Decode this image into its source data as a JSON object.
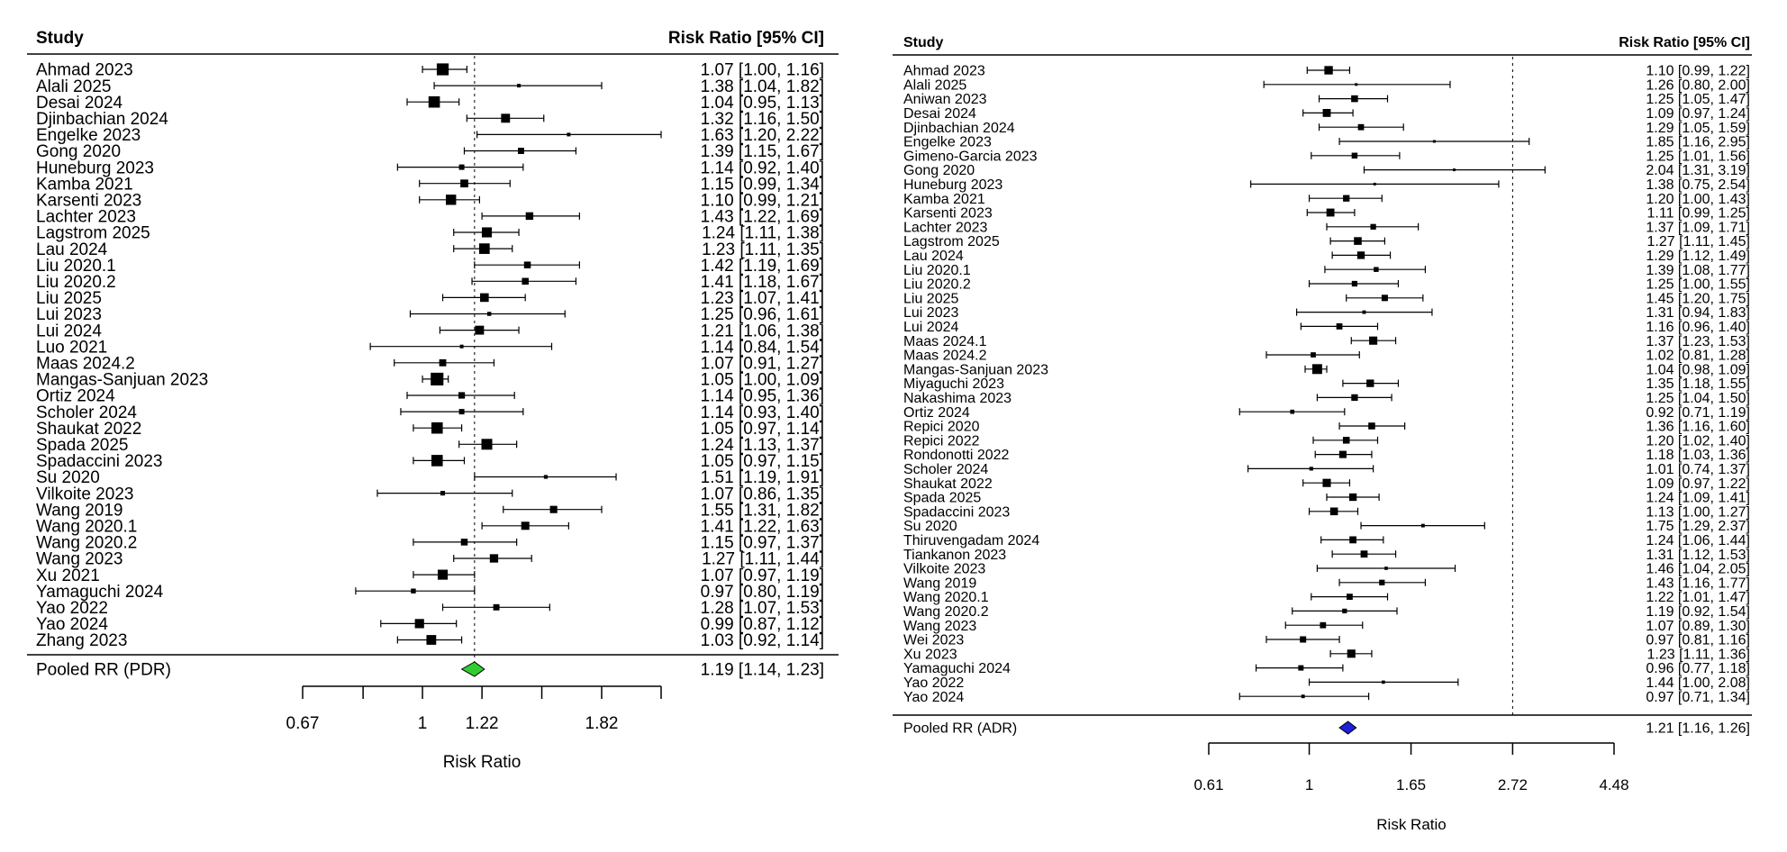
{
  "chart_data": [
    {
      "type": "forest",
      "header_left": "Study",
      "header_right": "Risk Ratio [95% CI]",
      "xlabel": "Risk Ratio",
      "ticks": [
        "0.67",
        "1",
        "1.22",
        "1.82"
      ],
      "tick_values": [
        0.67,
        0.82,
        1,
        1.22,
        1.49,
        1.82,
        2.22
      ],
      "scale": "log",
      "reference_line": 1.19,
      "marker_color": "#000000",
      "studies": [
        {
          "name": "Ahmad 2023",
          "rr": 1.07,
          "lo": 1.0,
          "hi": 1.16,
          "ci_text": "1.07 [1.00, 1.16]",
          "weight": 4.4
        },
        {
          "name": "Alali 2025",
          "rr": 1.38,
          "lo": 1.04,
          "hi": 1.82,
          "ci_text": "1.38 [1.04, 1.82]",
          "weight": 1.2
        },
        {
          "name": "Desai 2024",
          "rr": 1.04,
          "lo": 0.95,
          "hi": 1.13,
          "ci_text": "1.04 [0.95, 1.13]",
          "weight": 4.2
        },
        {
          "name": "Djinbachian 2024",
          "rr": 1.32,
          "lo": 1.16,
          "hi": 1.5,
          "ci_text": "1.32 [1.16, 1.50]",
          "weight": 3.3
        },
        {
          "name": "Engelke 2023",
          "rr": 1.63,
          "lo": 1.2,
          "hi": 2.22,
          "ci_text": "1.63 [1.20, 2.22]",
          "weight": 1.0
        },
        {
          "name": "Gong 2020",
          "rr": 1.39,
          "lo": 1.15,
          "hi": 1.67,
          "ci_text": "1.39 [1.15, 1.67]",
          "weight": 2.3
        },
        {
          "name": "Huneburg 2023",
          "rr": 1.14,
          "lo": 0.92,
          "hi": 1.4,
          "ci_text": "1.14 [0.92, 1.40]",
          "weight": 2.0
        },
        {
          "name": "Kamba 2021",
          "rr": 1.15,
          "lo": 0.99,
          "hi": 1.34,
          "ci_text": "1.15 [0.99, 1.34]",
          "weight": 2.9
        },
        {
          "name": "Karsenti 2023",
          "rr": 1.1,
          "lo": 0.99,
          "hi": 1.21,
          "ci_text": "1.10 [0.99, 1.21]",
          "weight": 3.8
        },
        {
          "name": "Lachter 2023",
          "rr": 1.43,
          "lo": 1.22,
          "hi": 1.69,
          "ci_text": "1.43 [1.22, 1.69]",
          "weight": 2.8
        },
        {
          "name": "Lagstrom 2025",
          "rr": 1.24,
          "lo": 1.11,
          "hi": 1.38,
          "ci_text": "1.24 [1.11, 1.38]",
          "weight": 3.7
        },
        {
          "name": "Lau 2024",
          "rr": 1.23,
          "lo": 1.11,
          "hi": 1.35,
          "ci_text": "1.23 [1.11, 1.35]",
          "weight": 3.9
        },
        {
          "name": "Liu 2020.1",
          "rr": 1.42,
          "lo": 1.19,
          "hi": 1.69,
          "ci_text": "1.42 [1.19, 1.69]",
          "weight": 2.5
        },
        {
          "name": "Liu 2020.2",
          "rr": 1.41,
          "lo": 1.18,
          "hi": 1.67,
          "ci_text": "1.41 [1.18, 1.67]",
          "weight": 2.5
        },
        {
          "name": "Liu 2025",
          "rr": 1.23,
          "lo": 1.07,
          "hi": 1.41,
          "ci_text": "1.23 [1.07, 1.41]",
          "weight": 3.2
        },
        {
          "name": "Lui 2023",
          "rr": 1.25,
          "lo": 0.96,
          "hi": 1.61,
          "ci_text": "1.25 [0.96, 1.61]",
          "weight": 1.5
        },
        {
          "name": "Lui 2024",
          "rr": 1.21,
          "lo": 1.06,
          "hi": 1.38,
          "ci_text": "1.21 [1.06, 1.38]",
          "weight": 3.3
        },
        {
          "name": "Luo 2021",
          "rr": 1.14,
          "lo": 0.84,
          "hi": 1.54,
          "ci_text": "1.14 [0.84, 1.54]",
          "weight": 1.1
        },
        {
          "name": "Maas 2024.2",
          "rr": 1.07,
          "lo": 0.91,
          "hi": 1.27,
          "ci_text": "1.07 [0.91, 1.27]",
          "weight": 2.6
        },
        {
          "name": "Mangas-Sanjuan 2023",
          "rr": 1.05,
          "lo": 1.0,
          "hi": 1.09,
          "ci_text": "1.05 [1.00, 1.09]",
          "weight": 4.7
        },
        {
          "name": "Ortiz 2024",
          "rr": 1.14,
          "lo": 0.95,
          "hi": 1.36,
          "ci_text": "1.14 [0.95, 1.36]",
          "weight": 2.4
        },
        {
          "name": "Scholer 2024",
          "rr": 1.14,
          "lo": 0.93,
          "hi": 1.4,
          "ci_text": "1.14 [0.93, 1.40]",
          "weight": 2.0
        },
        {
          "name": "Shaukat 2022",
          "rr": 1.05,
          "lo": 0.97,
          "hi": 1.14,
          "ci_text": "1.05 [0.97, 1.14]",
          "weight": 4.2
        },
        {
          "name": "Spada 2025",
          "rr": 1.24,
          "lo": 1.13,
          "hi": 1.37,
          "ci_text": "1.24 [1.13, 1.37]",
          "weight": 4.0
        },
        {
          "name": "Spadaccini 2023",
          "rr": 1.05,
          "lo": 0.97,
          "hi": 1.15,
          "ci_text": "1.05 [0.97, 1.15]",
          "weight": 4.2
        },
        {
          "name": "Su 2020",
          "rr": 1.51,
          "lo": 1.19,
          "hi": 1.91,
          "ci_text": "1.51 [1.19, 1.91]",
          "weight": 1.4
        },
        {
          "name": "Vilkoite 2023",
          "rr": 1.07,
          "lo": 0.86,
          "hi": 1.35,
          "ci_text": "1.07 [0.86, 1.35]",
          "weight": 1.7
        },
        {
          "name": "Wang 2019",
          "rr": 1.55,
          "lo": 1.31,
          "hi": 1.82,
          "ci_text": "1.55 [1.31, 1.82]",
          "weight": 2.7
        },
        {
          "name": "Wang 2020.1",
          "rr": 1.41,
          "lo": 1.22,
          "hi": 1.63,
          "ci_text": "1.41 [1.22, 1.63]",
          "weight": 3.0
        },
        {
          "name": "Wang 2020.2",
          "rr": 1.15,
          "lo": 0.97,
          "hi": 1.37,
          "ci_text": "1.15 [0.97, 1.37]",
          "weight": 2.5
        },
        {
          "name": "Wang 2023",
          "rr": 1.27,
          "lo": 1.11,
          "hi": 1.44,
          "ci_text": "1.27 [1.11, 1.44]",
          "weight": 3.1
        },
        {
          "name": "Xu 2021",
          "rr": 1.07,
          "lo": 0.97,
          "hi": 1.19,
          "ci_text": "1.07 [0.97, 1.19]",
          "weight": 3.7
        },
        {
          "name": "Yamaguchi 2024",
          "rr": 0.97,
          "lo": 0.8,
          "hi": 1.19,
          "ci_text": "0.97 [0.80, 1.19]",
          "weight": 1.8
        },
        {
          "name": "Yao 2022",
          "rr": 1.28,
          "lo": 1.07,
          "hi": 1.53,
          "ci_text": "1.28 [1.07, 1.53]",
          "weight": 2.3
        },
        {
          "name": "Yao 2024",
          "rr": 0.99,
          "lo": 0.87,
          "hi": 1.12,
          "ci_text": "0.99 [0.87, 1.12]",
          "weight": 3.4
        },
        {
          "name": "Zhang 2023",
          "rr": 1.03,
          "lo": 0.92,
          "hi": 1.14,
          "ci_text": "1.03 [0.92, 1.14]",
          "weight": 3.6
        }
      ],
      "pooled": {
        "label": "Pooled RR (PDR)",
        "rr": 1.19,
        "lo": 1.14,
        "hi": 1.23,
        "ci_text": "1.19 [1.14, 1.23]",
        "color": "#33cc33"
      }
    },
    {
      "type": "forest",
      "header_left": "Study",
      "header_right": "Risk Ratio [95% CI]",
      "xlabel": "Risk Ratio",
      "ticks": [
        "0.61",
        "1",
        "1.65",
        "2.72",
        "4.48"
      ],
      "tick_values": [
        0.61,
        1,
        1.65,
        2.72,
        4.48
      ],
      "scale": "log",
      "reference_line": 2.72,
      "marker_color": "#000000",
      "studies": [
        {
          "name": "Ahmad 2023",
          "rr": 1.1,
          "lo": 0.99,
          "hi": 1.22,
          "ci_text": "1.10 [0.99, 1.22]",
          "weight": 3.6
        },
        {
          "name": "Alali 2025",
          "rr": 1.26,
          "lo": 0.8,
          "hi": 2.0,
          "ci_text": "1.26 [0.80, 2.00]",
          "weight": 1.0
        },
        {
          "name": "Aniwan 2023",
          "rr": 1.25,
          "lo": 1.05,
          "hi": 1.47,
          "ci_text": "1.25 [1.05, 1.47]",
          "weight": 2.9
        },
        {
          "name": "Desai 2024",
          "rr": 1.09,
          "lo": 0.97,
          "hi": 1.24,
          "ci_text": "1.09 [0.97, 1.24]",
          "weight": 3.4
        },
        {
          "name": "Djinbachian 2024",
          "rr": 1.29,
          "lo": 1.05,
          "hi": 1.59,
          "ci_text": "1.29 [1.05, 1.59]",
          "weight": 2.6
        },
        {
          "name": "Engelke 2023",
          "rr": 1.85,
          "lo": 1.16,
          "hi": 2.95,
          "ci_text": "1.85 [1.16, 2.95]",
          "weight": 1.0
        },
        {
          "name": "Gimeno-Garcia 2023",
          "rr": 1.25,
          "lo": 1.01,
          "hi": 1.56,
          "ci_text": "1.25 [1.01, 1.56]",
          "weight": 2.5
        },
        {
          "name": "Gong 2020",
          "rr": 2.04,
          "lo": 1.31,
          "hi": 3.19,
          "ci_text": "2.04 [1.31, 3.19]",
          "weight": 1.0
        },
        {
          "name": "Huneburg 2023",
          "rr": 1.38,
          "lo": 0.75,
          "hi": 2.54,
          "ci_text": "1.38 [0.75, 2.54]",
          "weight": 0.8
        },
        {
          "name": "Kamba 2021",
          "rr": 1.2,
          "lo": 1.0,
          "hi": 1.43,
          "ci_text": "1.20 [1.00, 1.43]",
          "weight": 2.8
        },
        {
          "name": "Karsenti 2023",
          "rr": 1.11,
          "lo": 0.99,
          "hi": 1.25,
          "ci_text": "1.11 [0.99, 1.25]",
          "weight": 3.4
        },
        {
          "name": "Lachter 2023",
          "rr": 1.37,
          "lo": 1.09,
          "hi": 1.71,
          "ci_text": "1.37 [1.09, 1.71]",
          "weight": 2.4
        },
        {
          "name": "Lagstrom 2025",
          "rr": 1.27,
          "lo": 1.11,
          "hi": 1.45,
          "ci_text": "1.27 [1.11, 1.45]",
          "weight": 3.3
        },
        {
          "name": "Lau 2024",
          "rr": 1.29,
          "lo": 1.12,
          "hi": 1.49,
          "ci_text": "1.29 [1.12, 1.49]",
          "weight": 3.2
        },
        {
          "name": "Liu 2020.1",
          "rr": 1.39,
          "lo": 1.08,
          "hi": 1.77,
          "ci_text": "1.39 [1.08, 1.77]",
          "weight": 2.1
        },
        {
          "name": "Liu 2020.2",
          "rr": 1.25,
          "lo": 1.0,
          "hi": 1.55,
          "ci_text": "1.25 [1.00, 1.55]",
          "weight": 2.4
        },
        {
          "name": "Liu 2025",
          "rr": 1.45,
          "lo": 1.2,
          "hi": 1.75,
          "ci_text": "1.45 [1.20, 1.75]",
          "weight": 2.7
        },
        {
          "name": "Lui 2023",
          "rr": 1.31,
          "lo": 0.94,
          "hi": 1.83,
          "ci_text": "1.31 [0.94, 1.83]",
          "weight": 1.5
        },
        {
          "name": "Lui 2024",
          "rr": 1.16,
          "lo": 0.96,
          "hi": 1.4,
          "ci_text": "1.16 [0.96, 1.40]",
          "weight": 2.6
        },
        {
          "name": "Maas 2024.1",
          "rr": 1.37,
          "lo": 1.23,
          "hi": 1.53,
          "ci_text": "1.37 [1.23, 1.53]",
          "weight": 3.5
        },
        {
          "name": "Maas 2024.2",
          "rr": 1.02,
          "lo": 0.81,
          "hi": 1.28,
          "ci_text": "1.02 [0.81, 1.28]",
          "weight": 2.2
        },
        {
          "name": "Mangas-Sanjuan 2023",
          "rr": 1.04,
          "lo": 0.98,
          "hi": 1.09,
          "ci_text": "1.04 [0.98, 1.09]",
          "weight": 4.2
        },
        {
          "name": "Miyaguchi 2023",
          "rr": 1.35,
          "lo": 1.18,
          "hi": 1.55,
          "ci_text": "1.35 [1.18, 1.55]",
          "weight": 3.2
        },
        {
          "name": "Nakashima 2023",
          "rr": 1.25,
          "lo": 1.04,
          "hi": 1.5,
          "ci_text": "1.25 [1.04, 1.50]",
          "weight": 2.8
        },
        {
          "name": "Ortiz 2024",
          "rr": 0.92,
          "lo": 0.71,
          "hi": 1.19,
          "ci_text": "0.92 [0.71, 1.19]",
          "weight": 1.8
        },
        {
          "name": "Repici 2020",
          "rr": 1.36,
          "lo": 1.16,
          "hi": 1.6,
          "ci_text": "1.36 [1.16, 1.60]",
          "weight": 2.9
        },
        {
          "name": "Repici 2022",
          "rr": 1.2,
          "lo": 1.02,
          "hi": 1.4,
          "ci_text": "1.20 [1.02, 1.40]",
          "weight": 2.9
        },
        {
          "name": "Rondonotti 2022",
          "rr": 1.18,
          "lo": 1.03,
          "hi": 1.36,
          "ci_text": "1.18 [1.03, 1.36]",
          "weight": 3.1
        },
        {
          "name": "Scholer 2024",
          "rr": 1.01,
          "lo": 0.74,
          "hi": 1.37,
          "ci_text": "1.01 [0.74, 1.37]",
          "weight": 1.6
        },
        {
          "name": "Shaukat 2022",
          "rr": 1.09,
          "lo": 0.97,
          "hi": 1.22,
          "ci_text": "1.09 [0.97, 1.22]",
          "weight": 3.5
        },
        {
          "name": "Spada 2025",
          "rr": 1.24,
          "lo": 1.09,
          "hi": 1.41,
          "ci_text": "1.24 [1.09, 1.41]",
          "weight": 3.2
        },
        {
          "name": "Spadaccini 2023",
          "rr": 1.13,
          "lo": 1.0,
          "hi": 1.27,
          "ci_text": "1.13 [1.00, 1.27]",
          "weight": 3.3
        },
        {
          "name": "Su 2020",
          "rr": 1.75,
          "lo": 1.29,
          "hi": 2.37,
          "ci_text": "1.75 [1.29, 2.37]",
          "weight": 1.5
        },
        {
          "name": "Thiruvengadam 2024",
          "rr": 1.24,
          "lo": 1.06,
          "hi": 1.44,
          "ci_text": "1.24 [1.06, 1.44]",
          "weight": 3.0
        },
        {
          "name": "Tiankanon 2023",
          "rr": 1.31,
          "lo": 1.12,
          "hi": 1.53,
          "ci_text": "1.31 [1.12, 1.53]",
          "weight": 3.0
        },
        {
          "name": "Vilkoite 2023",
          "rr": 1.46,
          "lo": 1.04,
          "hi": 2.05,
          "ci_text": "1.46 [1.04, 2.05]",
          "weight": 1.4
        },
        {
          "name": "Wang 2019",
          "rr": 1.43,
          "lo": 1.16,
          "hi": 1.77,
          "ci_text": "1.43 [1.16, 1.77]",
          "weight": 2.4
        },
        {
          "name": "Wang 2020.1",
          "rr": 1.22,
          "lo": 1.01,
          "hi": 1.47,
          "ci_text": "1.22 [1.01, 1.47]",
          "weight": 2.6
        },
        {
          "name": "Wang 2020.2",
          "rr": 1.19,
          "lo": 0.92,
          "hi": 1.54,
          "ci_text": "1.19 [0.92, 1.54]",
          "weight": 2.0
        },
        {
          "name": "Wang 2023",
          "rr": 1.07,
          "lo": 0.89,
          "hi": 1.3,
          "ci_text": "1.07 [0.89, 1.30]",
          "weight": 2.6
        },
        {
          "name": "Wei 2023",
          "rr": 0.97,
          "lo": 0.81,
          "hi": 1.16,
          "ci_text": "0.97 [0.81, 1.16]",
          "weight": 2.7
        },
        {
          "name": "Xu 2023",
          "rr": 1.23,
          "lo": 1.11,
          "hi": 1.36,
          "ci_text": "1.23 [1.11, 1.36]",
          "weight": 3.5
        },
        {
          "name": "Yamaguchi 2024",
          "rr": 0.96,
          "lo": 0.77,
          "hi": 1.18,
          "ci_text": "0.96 [0.77, 1.18]",
          "weight": 2.3
        },
        {
          "name": "Yao 2022",
          "rr": 1.44,
          "lo": 1.0,
          "hi": 2.08,
          "ci_text": "1.44 [1.00, 2.08]",
          "weight": 1.4
        },
        {
          "name": "Yao 2024",
          "rr": 0.97,
          "lo": 0.71,
          "hi": 1.34,
          "ci_text": "0.97 [0.71, 1.34]",
          "weight": 1.5
        }
      ],
      "pooled": {
        "label": "Pooled RR (ADR)",
        "rr": 1.21,
        "lo": 1.16,
        "hi": 1.26,
        "ci_text": "1.21 [1.16, 1.26]",
        "color": "#1f1fd6"
      }
    }
  ]
}
